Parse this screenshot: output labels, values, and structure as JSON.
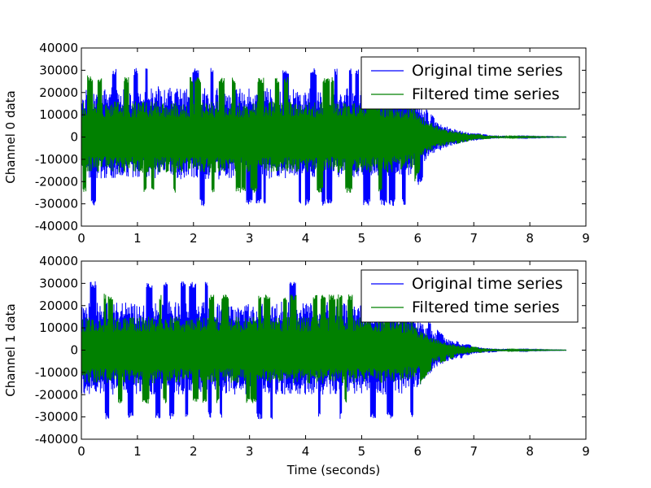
{
  "colors": {
    "original": "#0000ff",
    "filtered": "#008000",
    "background": "#ffffff",
    "axes": "#000000"
  },
  "chart_data": [
    {
      "type": "line",
      "ylabel": "Channel 0 data",
      "xlabel": "",
      "xlim": [
        0,
        9
      ],
      "ylim": [
        -40000,
        40000
      ],
      "xticks": [
        0,
        1,
        2,
        3,
        4,
        5,
        6,
        7,
        8,
        9
      ],
      "yticks": [
        -40000,
        -30000,
        -20000,
        -10000,
        0,
        10000,
        20000,
        30000,
        40000
      ],
      "grid": false,
      "legend": "top-right",
      "series": [
        {
          "name": "Original time series",
          "color": "#0000ff",
          "envelope_x": [
            0,
            0.5,
            1,
            1.5,
            2,
            2.5,
            3,
            3.5,
            4,
            4.5,
            5,
            5.5,
            5.9,
            6.0,
            6.2,
            6.4,
            6.6,
            6.8,
            7.0,
            7.2,
            7.5,
            8.0,
            8.65
          ],
          "envelope_max": [
            31000,
            31000,
            31000,
            31000,
            31000,
            31000,
            31000,
            31000,
            31000,
            31000,
            31000,
            31000,
            27000,
            20000,
            11000,
            7000,
            4500,
            3000,
            2000,
            1200,
            600,
            300,
            100
          ],
          "envelope_min": [
            -31000,
            -31000,
            -31000,
            -31000,
            -31000,
            -31000,
            -31000,
            -31000,
            -31000,
            -31000,
            -31000,
            -31000,
            -31000,
            -22000,
            -16000,
            -9000,
            -5500,
            -3500,
            -2200,
            -1300,
            -600,
            -300,
            -100
          ],
          "typical_max": [
            22000,
            23000,
            22000,
            23000,
            22000,
            22000,
            22000,
            22000,
            22000,
            22000,
            22000,
            22000,
            20000,
            16000,
            9000,
            6000,
            4000,
            2600,
            1700,
            1000,
            500,
            250,
            80
          ],
          "typical_min": [
            -18000,
            -19000,
            -18000,
            -19000,
            -19000,
            -19000,
            -18000,
            -19000,
            -19000,
            -18000,
            -18000,
            -18000,
            -17000,
            -15000,
            -9000,
            -6000,
            -4000,
            -2600,
            -1700,
            -1000,
            -500,
            -250,
            -80
          ]
        },
        {
          "name": "Filtered time series",
          "color": "#008000",
          "envelope_x": [
            0,
            0.5,
            1,
            1.5,
            2,
            2.5,
            3,
            3.5,
            4,
            4.5,
            5,
            5.5,
            5.9,
            6.0,
            6.2,
            6.4,
            6.6,
            6.8,
            7.0,
            7.2,
            7.5,
            8.0,
            8.65
          ],
          "envelope_max": [
            28000,
            27000,
            27000,
            27000,
            27000,
            27000,
            27000,
            27000,
            27000,
            27000,
            27000,
            27000,
            22000,
            16000,
            9000,
            5500,
            3500,
            2300,
            1500,
            900,
            450,
            220,
            70
          ],
          "envelope_min": [
            -25000,
            -25000,
            -25000,
            -25000,
            -25000,
            -25000,
            -25000,
            -25000,
            -25000,
            -25000,
            -25000,
            -25000,
            -23000,
            -17000,
            -10000,
            -6000,
            -3800,
            -2400,
            -1600,
            -900,
            -450,
            -220,
            -70
          ],
          "typical_max": [
            16000,
            16000,
            16000,
            16000,
            16000,
            16000,
            16000,
            16000,
            16000,
            16000,
            16000,
            16000,
            14000,
            11000,
            7000,
            4500,
            3000,
            2000,
            1300,
            800,
            400,
            200,
            60
          ],
          "typical_min": [
            -16000,
            -16000,
            -16000,
            -16000,
            -16000,
            -16000,
            -16000,
            -16000,
            -16000,
            -16000,
            -16000,
            -16000,
            -14000,
            -11000,
            -7000,
            -4500,
            -3000,
            -2000,
            -1300,
            -800,
            -400,
            -200,
            -60
          ]
        }
      ]
    },
    {
      "type": "line",
      "ylabel": "Channel 1 data",
      "xlabel": "Time (seconds)",
      "xlim": [
        0,
        9
      ],
      "ylim": [
        -40000,
        40000
      ],
      "xticks": [
        0,
        1,
        2,
        3,
        4,
        5,
        6,
        7,
        8,
        9
      ],
      "yticks": [
        -40000,
        -30000,
        -20000,
        -10000,
        0,
        10000,
        20000,
        30000,
        40000
      ],
      "grid": false,
      "legend": "top-right",
      "series": [
        {
          "name": "Original time series",
          "color": "#0000ff",
          "envelope_x": [
            0,
            0.5,
            1,
            1.5,
            2,
            2.5,
            3,
            3.5,
            4,
            4.5,
            5,
            5.5,
            5.9,
            6.0,
            6.2,
            6.4,
            6.6,
            6.8,
            7.0,
            7.2,
            7.5,
            8.0,
            8.65
          ],
          "envelope_max": [
            31000,
            31000,
            31000,
            31000,
            31000,
            31000,
            31000,
            31000,
            31000,
            31000,
            31000,
            31000,
            24000,
            20000,
            13000,
            8000,
            5000,
            3200,
            2000,
            1200,
            600,
            300,
            100
          ],
          "envelope_min": [
            -31000,
            -31000,
            -31000,
            -31000,
            -31000,
            -31000,
            -31000,
            -31000,
            -31000,
            -31000,
            -31000,
            -31000,
            -31000,
            -24000,
            -16000,
            -9000,
            -5500,
            -3500,
            -2200,
            -1300,
            -600,
            -300,
            -100
          ],
          "typical_max": [
            21000,
            22000,
            21000,
            22000,
            22000,
            22000,
            21000,
            22000,
            21000,
            22000,
            21000,
            21000,
            18000,
            15000,
            10000,
            6500,
            4200,
            2700,
            1700,
            1000,
            500,
            250,
            80
          ],
          "typical_min": [
            -20000,
            -20000,
            -20000,
            -20000,
            -20000,
            -20000,
            -20000,
            -20000,
            -20000,
            -20000,
            -20000,
            -20000,
            -19000,
            -17000,
            -11000,
            -7000,
            -4500,
            -2800,
            -1800,
            -1000,
            -500,
            -250,
            -80
          ]
        },
        {
          "name": "Filtered time series",
          "color": "#008000",
          "envelope_x": [
            0,
            0.5,
            1,
            1.5,
            2,
            2.5,
            3,
            3.5,
            4,
            4.5,
            5,
            5.5,
            5.9,
            6.0,
            6.2,
            6.4,
            6.6,
            6.8,
            7.0,
            7.2,
            7.5,
            8.0,
            8.65
          ],
          "envelope_max": [
            27000,
            25000,
            25000,
            25000,
            25000,
            25000,
            25000,
            25000,
            25000,
            25000,
            25000,
            24000,
            20000,
            15000,
            9000,
            5500,
            3500,
            2300,
            1500,
            900,
            450,
            220,
            70
          ],
          "envelope_min": [
            -24000,
            -24000,
            -24000,
            -24000,
            -24000,
            -24000,
            -24000,
            -24000,
            -24000,
            -24000,
            -24000,
            -24000,
            -22000,
            -17000,
            -10000,
            -6000,
            -3800,
            -2400,
            -1600,
            -900,
            -450,
            -220,
            -70
          ],
          "typical_max": [
            15000,
            15000,
            15000,
            15000,
            15000,
            15000,
            15000,
            15000,
            15000,
            15000,
            15000,
            15000,
            13000,
            10000,
            6500,
            4200,
            2800,
            1900,
            1200,
            750,
            380,
            190,
            60
          ],
          "typical_min": [
            -15000,
            -15000,
            -15000,
            -15000,
            -15000,
            -15000,
            -15000,
            -15000,
            -15000,
            -15000,
            -15000,
            -15000,
            -13000,
            -10500,
            -6800,
            -4300,
            -2900,
            -1900,
            -1200,
            -750,
            -380,
            -190,
            -60
          ]
        }
      ]
    }
  ]
}
